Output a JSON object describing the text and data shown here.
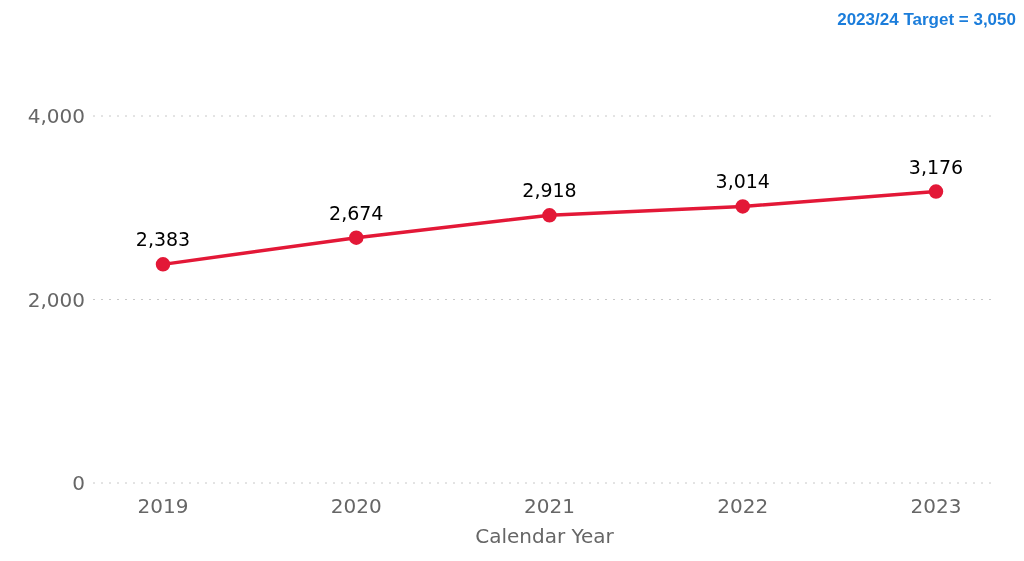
{
  "chart_data": {
    "type": "line",
    "xlabel": "Calendar Year",
    "annotations": [
      "2023/24 Target = 3,050"
    ],
    "categories": [
      "2019",
      "2020",
      "2021",
      "2022",
      "2023"
    ],
    "series": [
      {
        "color": "#e31837",
        "values": [
          2383,
          2674,
          2918,
          3014,
          3176
        ],
        "value_labels": [
          "2,383",
          "2,674",
          "2,918",
          "3,014",
          "3,176"
        ]
      }
    ],
    "ylim": [
      0,
      4000
    ],
    "yticks": [
      {
        "value": 0,
        "label": "0"
      },
      {
        "value": 2000,
        "label": "2,000"
      },
      {
        "value": 4000,
        "label": "4,000"
      }
    ],
    "grid": "y",
    "marker": "circle",
    "line_style": "solid"
  }
}
